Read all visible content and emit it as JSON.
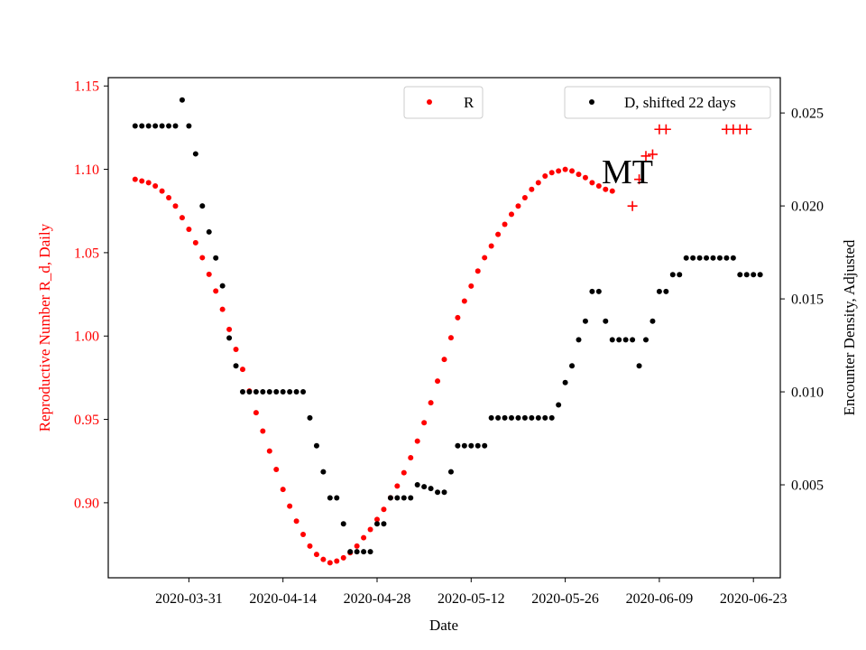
{
  "chart_data": {
    "type": "scatter",
    "xlabel": "Date",
    "y_left_label": "Reproductive Number R_d, Daily",
    "y_right_label": "Encounter Density, Adjusted",
    "annotation": "MT",
    "legend": {
      "left": "R",
      "right": "D, shifted 22 days"
    },
    "colors": {
      "r": "#ff0000",
      "d": "#000000",
      "text_left": "#ff0000",
      "text_right": "#000000"
    },
    "x_ticks": [
      "2020-03-31",
      "2020-04-14",
      "2020-04-28",
      "2020-05-12",
      "2020-05-26",
      "2020-06-09",
      "2020-06-23"
    ],
    "y_left_ticks": [
      "0.90",
      "0.95",
      "1.00",
      "1.05",
      "1.10",
      "1.15"
    ],
    "y_right_ticks": [
      "0.005",
      "0.010",
      "0.015",
      "0.020",
      "0.025"
    ],
    "x_range": [
      "2020-03-19",
      "2020-06-27"
    ],
    "y_left_range": [
      0.855,
      1.155
    ],
    "y_right_range": [
      0.0,
      0.0269
    ],
    "r_series": {
      "name": "R",
      "start": "2020-03-23",
      "values": [
        1.094,
        1.093,
        1.092,
        1.09,
        1.087,
        1.083,
        1.078,
        1.071,
        1.064,
        1.056,
        1.047,
        1.037,
        1.027,
        1.016,
        1.004,
        0.992,
        0.98,
        0.967,
        0.954,
        0.943,
        0.931,
        0.92,
        0.908,
        0.898,
        0.889,
        0.881,
        0.874,
        0.869,
        0.866,
        0.864,
        0.865,
        0.867,
        0.87,
        0.874,
        0.879,
        0.884,
        0.89,
        0.896,
        0.903,
        0.91,
        0.918,
        0.927,
        0.937,
        0.948,
        0.96,
        0.973,
        0.986,
        0.999,
        1.011,
        1.021,
        1.03,
        1.039,
        1.047,
        1.054,
        1.061,
        1.067,
        1.073,
        1.078,
        1.083,
        1.088,
        1.092,
        1.096,
        1.098,
        1.099,
        1.1,
        1.099,
        1.097,
        1.095,
        1.092,
        1.09,
        1.088,
        1.087
      ]
    },
    "r_plus_points": [
      {
        "date": "2020-06-05",
        "value": 1.078
      },
      {
        "date": "2020-06-06",
        "value": 1.094
      },
      {
        "date": "2020-06-07",
        "value": 1.108
      },
      {
        "date": "2020-06-08",
        "value": 1.109
      },
      {
        "date": "2020-06-09",
        "value": 1.124
      },
      {
        "date": "2020-06-10",
        "value": 1.124
      },
      {
        "date": "2020-06-19",
        "value": 1.124
      },
      {
        "date": "2020-06-20",
        "value": 1.124
      },
      {
        "date": "2020-06-21",
        "value": 1.124
      },
      {
        "date": "2020-06-22",
        "value": 1.124
      }
    ],
    "d_series": {
      "name": "D, shifted 22 days",
      "start": "2020-03-23",
      "values": [
        0.0243,
        0.0243,
        0.0243,
        0.0243,
        0.0243,
        0.0243,
        0.0243,
        0.0257,
        0.0243,
        0.0228,
        0.02,
        0.0186,
        0.0172,
        0.0157,
        0.0129,
        0.0114,
        0.01,
        0.01,
        0.01,
        0.01,
        0.01,
        0.01,
        0.01,
        0.01,
        0.01,
        0.01,
        0.0086,
        0.0071,
        0.0057,
        0.0043,
        0.0043,
        0.0029,
        0.0014,
        0.0014,
        0.0014,
        0.0014,
        0.0029,
        0.0029,
        0.0043,
        0.0043,
        0.0043,
        0.0043,
        0.005,
        0.0049,
        0.0048,
        0.0046,
        0.0046,
        0.0057,
        0.0071,
        0.0071,
        0.0071,
        0.0071,
        0.0071,
        0.0086,
        0.0086,
        0.0086,
        0.0086,
        0.0086,
        0.0086,
        0.0086,
        0.0086,
        0.0086,
        0.0086,
        0.0093,
        0.0105,
        0.0114,
        0.0128,
        0.0138,
        0.0154,
        0.0154,
        0.0138,
        0.0128,
        0.0128,
        0.0128,
        0.0128,
        0.0114,
        0.0128,
        0.0138,
        0.0154,
        0.0154,
        0.0163,
        0.0163,
        0.0172,
        0.0172,
        0.0172,
        0.0172,
        0.0172,
        0.0172,
        0.0172,
        0.0172,
        0.0163,
        0.0163,
        0.0163,
        0.0163
      ]
    }
  }
}
